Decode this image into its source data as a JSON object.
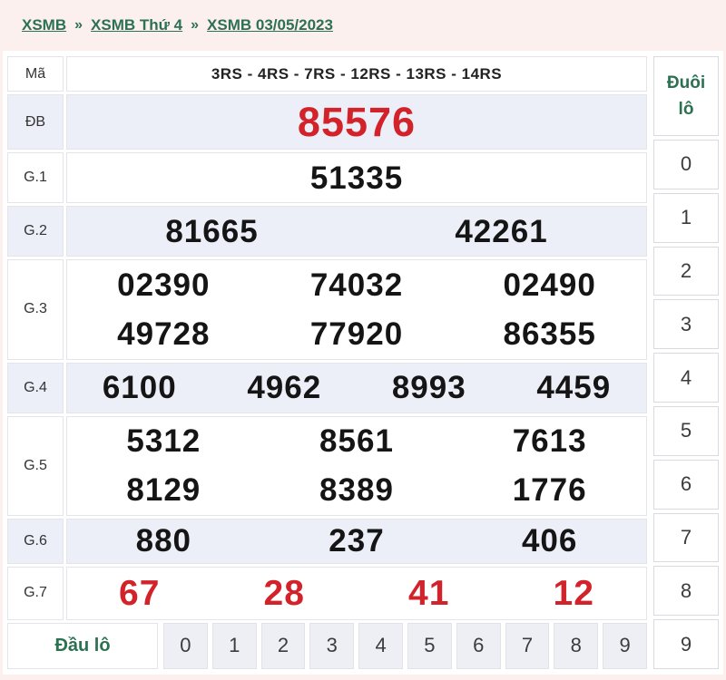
{
  "breadcrumb": {
    "separator": "»",
    "items": [
      {
        "label": "XSMB"
      },
      {
        "label": "XSMB Thứ 4"
      },
      {
        "label": "XSMB 03/05/2023"
      }
    ]
  },
  "table": {
    "code_label": "Mã",
    "code_value": "3RS - 4RS - 7RS - 12RS - 13RS - 14RS",
    "rows": [
      {
        "label": "ĐB",
        "shaded": true,
        "color": "red",
        "size": "xl",
        "lines": [
          [
            "85576"
          ]
        ]
      },
      {
        "label": "G.1",
        "shaded": false,
        "color": "black",
        "lines": [
          [
            "51335"
          ]
        ]
      },
      {
        "label": "G.2",
        "shaded": true,
        "color": "black",
        "lines": [
          [
            "81665",
            "42261"
          ]
        ]
      },
      {
        "label": "G.3",
        "shaded": false,
        "color": "black",
        "lines": [
          [
            "02390",
            "74032",
            "02490"
          ],
          [
            "49728",
            "77920",
            "86355"
          ]
        ]
      },
      {
        "label": "G.4",
        "shaded": true,
        "color": "black",
        "lines": [
          [
            "6100",
            "4962",
            "8993",
            "4459"
          ]
        ]
      },
      {
        "label": "G.5",
        "shaded": false,
        "color": "black",
        "lines": [
          [
            "5312",
            "8561",
            "7613"
          ],
          [
            "8129",
            "8389",
            "1776"
          ]
        ]
      },
      {
        "label": "G.6",
        "shaded": true,
        "color": "black",
        "size": "g6",
        "lines": [
          [
            "880",
            "237",
            "406"
          ]
        ]
      },
      {
        "label": "G.7",
        "shaded": false,
        "color": "red",
        "size": "g7",
        "lines": [
          [
            "67",
            "28",
            "41",
            "12"
          ]
        ]
      }
    ],
    "footer": {
      "label": "Đầu lô",
      "digits": [
        "0",
        "1",
        "2",
        "3",
        "4",
        "5",
        "6",
        "7",
        "8",
        "9"
      ]
    }
  },
  "tail_column": {
    "title": "Đuôi lô",
    "digits": [
      "0",
      "1",
      "2",
      "3",
      "4",
      "5",
      "6",
      "7",
      "8",
      "9"
    ]
  },
  "colors": {
    "page_background": "#fcf0ee",
    "shaded_row": "#edeff8",
    "accent_green": "#2c7152",
    "highlight_red": "#d2232a"
  }
}
